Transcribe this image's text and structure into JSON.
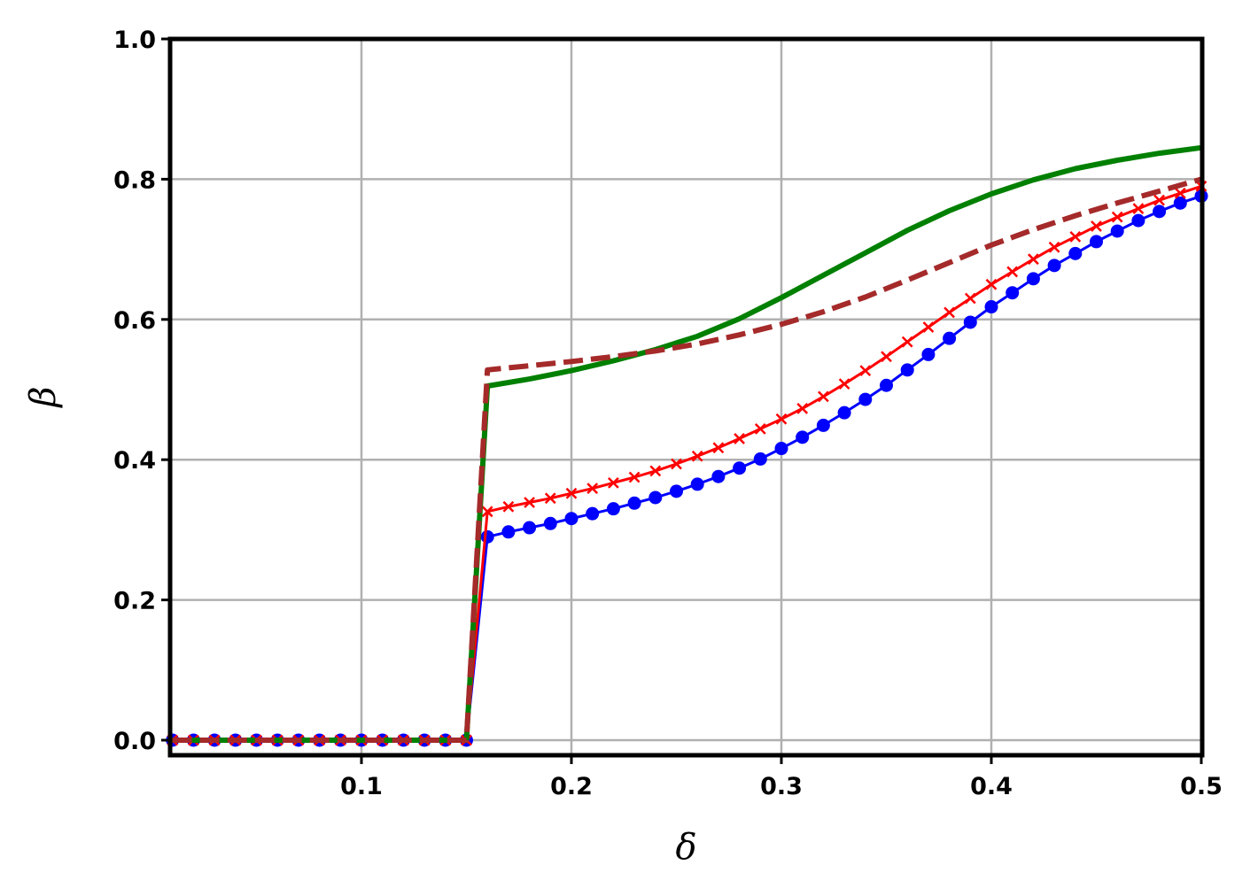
{
  "chart_data": {
    "type": "line",
    "xlabel": "δ",
    "ylabel": "β",
    "xlim": [
      0.01,
      0.5
    ],
    "ylim": [
      -0.02,
      1.0
    ],
    "grid": true,
    "legend": "none",
    "xticks": [
      0.1,
      0.2,
      0.3,
      0.4,
      0.5
    ],
    "xtick_labels": [
      "0.1",
      "0.2",
      "0.3",
      "0.4",
      "0.5"
    ],
    "yticks": [
      0.0,
      0.2,
      0.4,
      0.6,
      0.8,
      1.0
    ],
    "ytick_labels": [
      "0.0",
      "0.2",
      "0.4",
      "0.6",
      "0.8",
      "1.0"
    ],
    "colors": {
      "grid": "#b0b0b0",
      "frame": "#000000",
      "blue": "#0000ff",
      "red": "#ff0000",
      "green": "#008000",
      "brown": "#a52a2a"
    },
    "series": [
      {
        "color": "#0000ff",
        "style": "solid",
        "marker": "circle",
        "x": [
          0.01,
          0.02,
          0.03,
          0.04,
          0.05,
          0.06,
          0.07,
          0.08,
          0.09,
          0.1,
          0.11,
          0.12,
          0.13,
          0.14,
          0.15,
          0.16,
          0.17,
          0.18,
          0.19,
          0.2,
          0.21,
          0.22,
          0.23,
          0.24,
          0.25,
          0.26,
          0.27,
          0.28,
          0.29,
          0.3,
          0.31,
          0.32,
          0.33,
          0.34,
          0.35,
          0.36,
          0.37,
          0.38,
          0.39,
          0.4,
          0.41,
          0.42,
          0.43,
          0.44,
          0.45,
          0.46,
          0.47,
          0.48,
          0.49,
          0.5
        ],
        "y": [
          0.0,
          0.0,
          0.0,
          0.0,
          0.0,
          0.0,
          0.0,
          0.0,
          0.0,
          0.0,
          0.0,
          0.0,
          0.0,
          0.0,
          0.0,
          0.29,
          0.297,
          0.303,
          0.309,
          0.316,
          0.323,
          0.33,
          0.338,
          0.346,
          0.355,
          0.365,
          0.376,
          0.388,
          0.401,
          0.416,
          0.432,
          0.449,
          0.467,
          0.486,
          0.506,
          0.528,
          0.55,
          0.573,
          0.596,
          0.618,
          0.638,
          0.658,
          0.677,
          0.694,
          0.711,
          0.726,
          0.741,
          0.754,
          0.766,
          0.776
        ]
      },
      {
        "color": "#ff0000",
        "style": "solid",
        "marker": "x",
        "x": [
          0.01,
          0.02,
          0.03,
          0.04,
          0.05,
          0.06,
          0.07,
          0.08,
          0.09,
          0.1,
          0.11,
          0.12,
          0.13,
          0.14,
          0.15,
          0.16,
          0.17,
          0.18,
          0.19,
          0.2,
          0.21,
          0.22,
          0.23,
          0.24,
          0.25,
          0.26,
          0.27,
          0.28,
          0.29,
          0.3,
          0.31,
          0.32,
          0.33,
          0.34,
          0.35,
          0.36,
          0.37,
          0.38,
          0.39,
          0.4,
          0.41,
          0.42,
          0.43,
          0.44,
          0.45,
          0.46,
          0.47,
          0.48,
          0.49,
          0.5
        ],
        "y": [
          0.0,
          0.0,
          0.0,
          0.0,
          0.0,
          0.0,
          0.0,
          0.0,
          0.0,
          0.0,
          0.0,
          0.0,
          0.0,
          0.0,
          0.0,
          0.326,
          0.333,
          0.339,
          0.345,
          0.352,
          0.359,
          0.367,
          0.375,
          0.384,
          0.394,
          0.405,
          0.417,
          0.43,
          0.444,
          0.458,
          0.473,
          0.49,
          0.508,
          0.527,
          0.547,
          0.568,
          0.589,
          0.61,
          0.63,
          0.65,
          0.668,
          0.686,
          0.703,
          0.718,
          0.733,
          0.746,
          0.758,
          0.77,
          0.78,
          0.79
        ]
      },
      {
        "color": "#008000",
        "style": "solid",
        "marker": "none",
        "x": [
          0.01,
          0.15,
          0.16,
          0.18,
          0.2,
          0.22,
          0.24,
          0.26,
          0.28,
          0.3,
          0.32,
          0.34,
          0.36,
          0.38,
          0.4,
          0.42,
          0.44,
          0.46,
          0.48,
          0.5
        ],
        "y": [
          0.0,
          0.0,
          0.505,
          0.515,
          0.527,
          0.541,
          0.557,
          0.576,
          0.601,
          0.631,
          0.663,
          0.695,
          0.727,
          0.755,
          0.779,
          0.799,
          0.815,
          0.827,
          0.837,
          0.845
        ]
      },
      {
        "color": "#a52a2a",
        "style": "dashed",
        "marker": "none",
        "x": [
          0.01,
          0.15,
          0.16,
          0.18,
          0.2,
          0.22,
          0.24,
          0.26,
          0.28,
          0.3,
          0.32,
          0.34,
          0.36,
          0.38,
          0.4,
          0.42,
          0.44,
          0.46,
          0.48,
          0.5
        ],
        "y": [
          0.0,
          0.0,
          0.528,
          0.534,
          0.54,
          0.547,
          0.555,
          0.565,
          0.578,
          0.593,
          0.611,
          0.632,
          0.656,
          0.681,
          0.706,
          0.728,
          0.748,
          0.766,
          0.783,
          0.8
        ]
      }
    ]
  }
}
